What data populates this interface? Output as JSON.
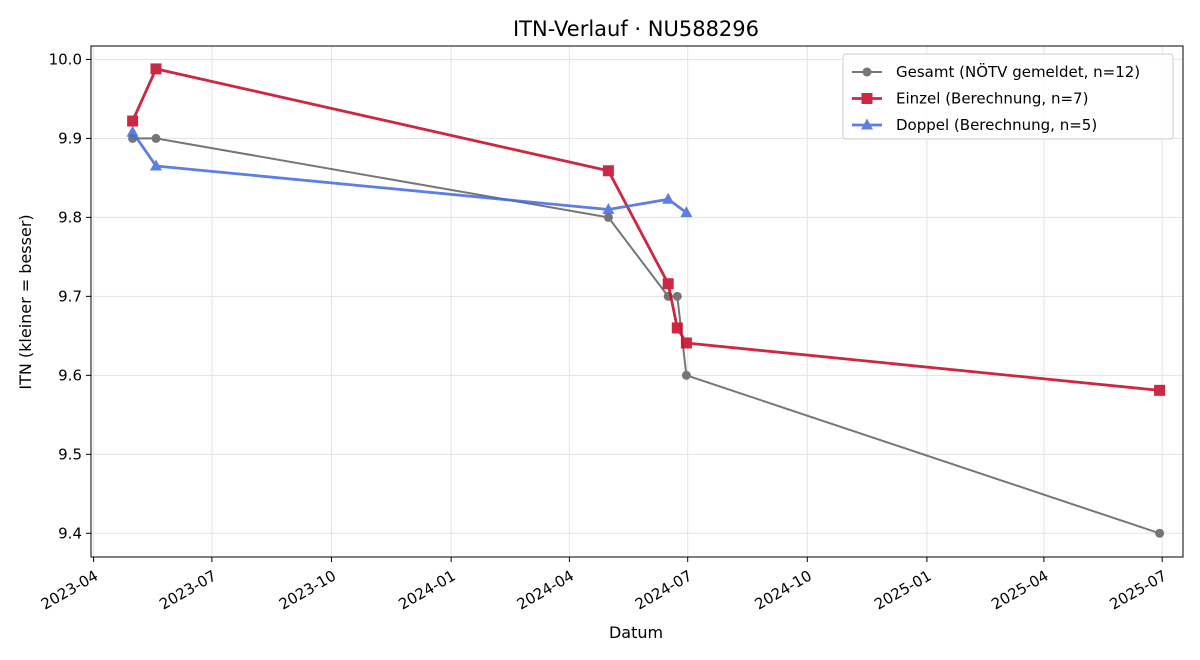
{
  "chart_data": {
    "type": "line",
    "title": "ITN-Verlauf · NU588296",
    "xlabel": "Datum",
    "ylabel": "ITN  (kleiner = besser)",
    "x_type": "date",
    "xlim": [
      "2023-03-30",
      "2025-07-17"
    ],
    "ylim": [
      9.37,
      10.017
    ],
    "x_ticks": [
      "2023-04-01",
      "2023-07-01",
      "2023-10-01",
      "2024-01-01",
      "2024-04-01",
      "2024-07-01",
      "2024-10-01",
      "2025-01-01",
      "2025-04-01",
      "2025-07-01"
    ],
    "x_tick_labels": [
      "2023-04",
      "2023-07",
      "2023-10",
      "2024-01",
      "2024-04",
      "2024-07",
      "2024-10",
      "2025-01",
      "2025-04",
      "2025-07"
    ],
    "y_ticks": [
      9.4,
      9.5,
      9.6,
      9.7,
      9.8,
      9.9,
      10.0
    ],
    "y_tick_labels": [
      "9.4",
      "9.5",
      "9.6",
      "9.7",
      "9.8",
      "9.9",
      "10.0"
    ],
    "grid": true,
    "legend_position": "top-right",
    "series": [
      {
        "name": "Gesamt (NÖTV gemeldet, n=12)",
        "color": "#555555",
        "marker": "circle",
        "points": [
          {
            "x": "2023-05-01",
            "y": 9.9
          },
          {
            "x": "2023-05-19",
            "y": 9.9
          },
          {
            "x": "2024-05-01",
            "y": 9.8
          },
          {
            "x": "2024-06-16",
            "y": 9.7
          },
          {
            "x": "2024-06-23",
            "y": 9.7
          },
          {
            "x": "2024-06-30",
            "y": 9.6
          },
          {
            "x": "2025-06-29",
            "y": 9.4
          }
        ]
      },
      {
        "name": "Einzel (Berechnung, n=7)",
        "color": "#c8102e",
        "marker": "square",
        "points": [
          {
            "x": "2023-05-01",
            "y": 9.922
          },
          {
            "x": "2023-05-19",
            "y": 9.988
          },
          {
            "x": "2024-05-01",
            "y": 9.859
          },
          {
            "x": "2024-06-16",
            "y": 9.716
          },
          {
            "x": "2024-06-23",
            "y": 9.66
          },
          {
            "x": "2024-06-30",
            "y": 9.641
          },
          {
            "x": "2025-06-29",
            "y": 9.581
          }
        ]
      },
      {
        "name": "Doppel (Berechnung, n=5)",
        "color": "#4169e1",
        "marker": "triangle",
        "points": [
          {
            "x": "2023-05-01",
            "y": 9.908
          },
          {
            "x": "2023-05-19",
            "y": 9.865
          },
          {
            "x": "2024-05-01",
            "y": 9.81
          },
          {
            "x": "2024-06-16",
            "y": 9.823
          },
          {
            "x": "2024-06-30",
            "y": 9.806
          }
        ]
      }
    ]
  }
}
